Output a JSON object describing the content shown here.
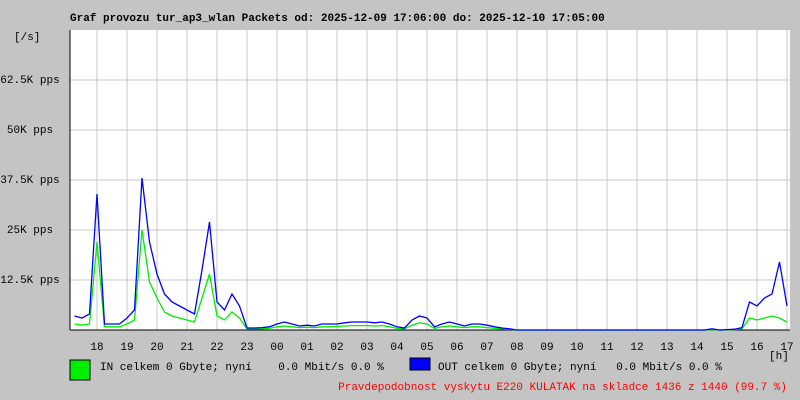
{
  "chart_data": {
    "type": "line",
    "title": "Graf provozu tur_ap3_wlan Packets od: 2025-12-09 17:06:00 do: 2025-12-10 17:05:00",
    "y_label": "[/s]",
    "x_label": "[h]",
    "annotation": "Pravdepodobnost vyskytu E220 KULATAK na skladce 1436 z 1440 (99.7 %)",
    "grid": true,
    "xlim": [
      17.1,
      41.1
    ],
    "xticks": [
      {
        "value": 18,
        "label": "18"
      },
      {
        "value": 19,
        "label": "19"
      },
      {
        "value": 20,
        "label": "20"
      },
      {
        "value": 21,
        "label": "21"
      },
      {
        "value": 22,
        "label": "22"
      },
      {
        "value": 23,
        "label": "23"
      },
      {
        "value": 24,
        "label": "00"
      },
      {
        "value": 25,
        "label": "01"
      },
      {
        "value": 26,
        "label": "02"
      },
      {
        "value": 27,
        "label": "03"
      },
      {
        "value": 28,
        "label": "04"
      },
      {
        "value": 29,
        "label": "05"
      },
      {
        "value": 30,
        "label": "06"
      },
      {
        "value": 31,
        "label": "07"
      },
      {
        "value": 32,
        "label": "08"
      },
      {
        "value": 33,
        "label": "09"
      },
      {
        "value": 34,
        "label": "10"
      },
      {
        "value": 35,
        "label": "11"
      },
      {
        "value": 36,
        "label": "12"
      },
      {
        "value": 37,
        "label": "13"
      },
      {
        "value": 38,
        "label": "14"
      },
      {
        "value": 39,
        "label": "15"
      },
      {
        "value": 40,
        "label": "16"
      },
      {
        "value": 41,
        "label": "17"
      }
    ],
    "ylim": [
      0,
      75000
    ],
    "yticks": [
      {
        "value": 12500,
        "label": "12.5K pps"
      },
      {
        "value": 25000,
        "label": "25K pps"
      },
      {
        "value": 37500,
        "label": "37.5K pps"
      },
      {
        "value": 50000,
        "label": "50K pps"
      },
      {
        "value": 62500,
        "label": "62.5K pps"
      }
    ],
    "x": [
      17.25,
      17.5,
      17.75,
      18,
      18.25,
      18.5,
      18.75,
      19,
      19.25,
      19.5,
      19.75,
      20,
      20.25,
      20.5,
      20.75,
      21,
      21.25,
      21.5,
      21.75,
      22,
      22.25,
      22.5,
      22.75,
      23,
      23.25,
      23.5,
      23.75,
      24,
      24.25,
      24.5,
      24.75,
      25,
      25.25,
      25.5,
      25.75,
      26,
      26.25,
      26.5,
      26.75,
      27,
      27.25,
      27.5,
      27.75,
      28,
      28.25,
      28.5,
      28.75,
      29,
      29.25,
      29.5,
      29.75,
      30,
      30.25,
      30.5,
      30.75,
      31,
      31.25,
      31.5,
      31.75,
      32,
      32.25,
      32.5,
      32.75,
      33,
      33.25,
      33.5,
      33.75,
      34,
      34.25,
      34.5,
      34.75,
      35,
      35.25,
      35.5,
      35.75,
      36,
      36.25,
      36.5,
      36.75,
      37,
      37.25,
      37.5,
      37.75,
      38,
      38.25,
      38.5,
      38.75,
      39,
      39.25,
      39.5,
      39.75,
      40,
      40.25,
      40.5,
      40.75,
      41
    ],
    "series": [
      {
        "name": "IN celkem 0 Gbyte; nyní    0.0 Mbit/s 0.0 %",
        "color": "#00ee00",
        "values": [
          1500,
          1200,
          1500,
          22000,
          800,
          800,
          800,
          1500,
          2500,
          25000,
          12000,
          8000,
          4500,
          3500,
          3000,
          2500,
          2000,
          8000,
          14000,
          3500,
          2500,
          4500,
          3000,
          300,
          300,
          300,
          400,
          800,
          1000,
          800,
          600,
          700,
          600,
          800,
          800,
          900,
          1000,
          1100,
          1100,
          1100,
          1000,
          1100,
          800,
          400,
          300,
          1200,
          1800,
          1500,
          400,
          800,
          1000,
          800,
          600,
          800,
          800,
          600,
          400,
          300,
          200,
          0,
          0,
          0,
          0,
          0,
          0,
          0,
          0,
          0,
          0,
          0,
          0,
          0,
          0,
          0,
          0,
          0,
          0,
          0,
          0,
          0,
          0,
          0,
          0,
          0,
          0,
          100,
          0,
          50,
          100,
          300,
          3000,
          2500,
          3000,
          3500,
          3000,
          2000
        ]
      },
      {
        "name": "OUT celkem 0 Gbyte; nyní   0.0 Mbit/s 0.0 %",
        "color": "#0000ff",
        "values": [
          3500,
          3000,
          4000,
          34000,
          1500,
          1500,
          1500,
          3000,
          5000,
          38000,
          22000,
          14000,
          9000,
          7000,
          6000,
          5000,
          4000,
          15000,
          27000,
          7000,
          5000,
          9000,
          6000,
          500,
          500,
          600,
          800,
          1500,
          2000,
          1500,
          1000,
          1200,
          1000,
          1500,
          1500,
          1500,
          1800,
          2000,
          2000,
          2000,
          1800,
          2000,
          1500,
          800,
          500,
          2500,
          3500,
          3000,
          800,
          1500,
          2000,
          1500,
          1000,
          1500,
          1500,
          1200,
          800,
          500,
          300,
          0,
          0,
          0,
          0,
          0,
          0,
          0,
          0,
          0,
          0,
          0,
          0,
          0,
          0,
          0,
          0,
          0,
          0,
          0,
          0,
          0,
          0,
          0,
          0,
          0,
          0,
          300,
          0,
          100,
          200,
          600,
          7000,
          6000,
          8000,
          9000,
          17000,
          6000
        ]
      }
    ]
  }
}
